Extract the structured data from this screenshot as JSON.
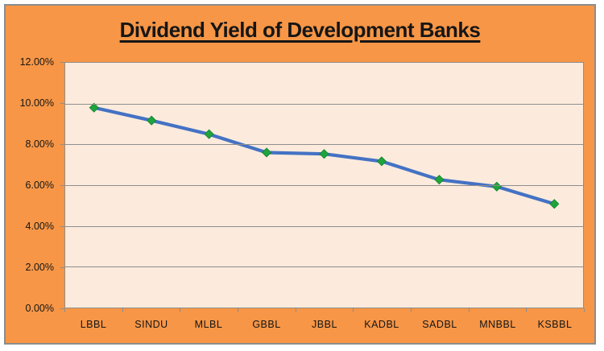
{
  "chart": {
    "colors": {
      "frame_background": "#F79646",
      "plot_background": "#FCEBDC",
      "frame_border": "#8C8C8C",
      "gridline": "#8E8E8E",
      "line": "#4472C4",
      "marker_fill": "#1EA43C",
      "marker_stroke": "#148030",
      "text": "#161616"
    }
  },
  "chart_data": {
    "type": "line",
    "title": "Dividend Yield of Development Banks",
    "categories": [
      "LBBL",
      "SINDU",
      "MLBL",
      "GBBL",
      "JBBL",
      "KADBL",
      "SADBL",
      "MNBBL",
      "KSBBL"
    ],
    "values": [
      9.8,
      9.17,
      8.5,
      7.6,
      7.53,
      7.17,
      6.27,
      5.93,
      5.08
    ],
    "value_unit": "%",
    "ylim": [
      0,
      12
    ],
    "y_tick_step": 2,
    "y_tick_labels": [
      "12.00%",
      "10.00%",
      "8.00%",
      "6.00%",
      "4.00%",
      "2.00%",
      "0.00%"
    ],
    "xlabel": "",
    "ylabel": "",
    "grid": true,
    "legend_position": "none",
    "marker_shape": "diamond"
  }
}
